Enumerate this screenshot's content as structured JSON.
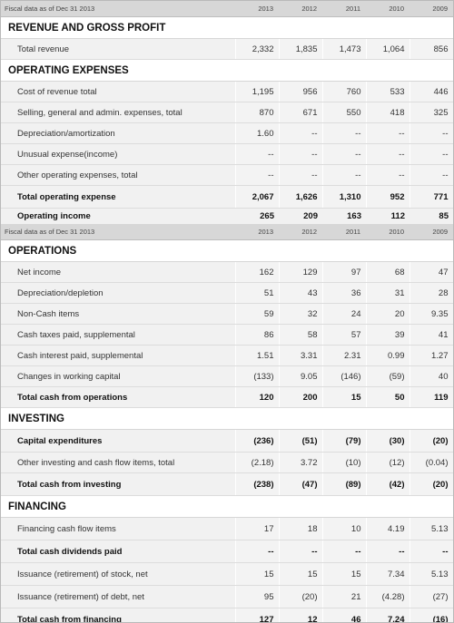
{
  "header": {
    "fiscal_label": "Fiscal data as of Dec 31 2013",
    "years": [
      "2013",
      "2012",
      "2011",
      "2010",
      "2009"
    ]
  },
  "income": {
    "revenue_section": "REVENUE AND GROSS PROFIT",
    "total_revenue": {
      "label": "Total revenue",
      "values": [
        "2,332",
        "1,835",
        "1,473",
        "1,064",
        "856"
      ]
    },
    "opex_section": "OPERATING EXPENSES",
    "rows": [
      {
        "label": "Cost of revenue total",
        "values": [
          "1,195",
          "956",
          "760",
          "533",
          "446"
        ]
      },
      {
        "label": "Selling, general and admin. expenses, total",
        "values": [
          "870",
          "671",
          "550",
          "418",
          "325"
        ]
      },
      {
        "label": "Depreciation/amortization",
        "values": [
          "1.60",
          "--",
          "--",
          "--",
          "--"
        ]
      },
      {
        "label": "Unusual expense(income)",
        "values": [
          "--",
          "--",
          "--",
          "--",
          "--"
        ]
      },
      {
        "label": "Other operating expenses, total",
        "values": [
          "--",
          "--",
          "--",
          "--",
          "--"
        ]
      }
    ],
    "total_opex": {
      "label": "Total operating expense",
      "values": [
        "2,067",
        "1,626",
        "1,310",
        "952",
        "771"
      ]
    },
    "operating_income": {
      "label": "Operating income",
      "values": [
        "265",
        "209",
        "163",
        "112",
        "85"
      ]
    }
  },
  "cashflow": {
    "operations_section": "OPERATIONS",
    "operations_rows": [
      {
        "label": "Net income",
        "values": [
          "162",
          "129",
          "97",
          "68",
          "47"
        ]
      },
      {
        "label": "Depreciation/depletion",
        "values": [
          "51",
          "43",
          "36",
          "31",
          "28"
        ]
      },
      {
        "label": "Non-Cash items",
        "values": [
          "59",
          "32",
          "24",
          "20",
          "9.35"
        ]
      },
      {
        "label": "Cash taxes paid, supplemental",
        "values": [
          "86",
          "58",
          "57",
          "39",
          "41"
        ]
      },
      {
        "label": "Cash interest paid, supplemental",
        "values": [
          "1.51",
          "3.31",
          "2.31",
          "0.99",
          "1.27"
        ]
      },
      {
        "label": "Changes in working capital",
        "values": [
          "(133)",
          "9.05",
          "(146)",
          "(59)",
          "40"
        ]
      }
    ],
    "total_operations": {
      "label": "Total cash from operations",
      "values": [
        "120",
        "200",
        "15",
        "50",
        "119"
      ]
    },
    "investing_section": "INVESTING",
    "capex": {
      "label": "Capital expenditures",
      "values": [
        "(236)",
        "(51)",
        "(79)",
        "(30)",
        "(20)"
      ]
    },
    "other_investing": {
      "label": "Other investing and cash flow items, total",
      "values": [
        "(2.18)",
        "3.72",
        "(10)",
        "(12)",
        "(0.04)"
      ]
    },
    "total_investing": {
      "label": "Total cash from investing",
      "values": [
        "(238)",
        "(47)",
        "(89)",
        "(42)",
        "(20)"
      ]
    },
    "financing_section": "FINANCING",
    "financing_items": {
      "label": "Financing cash flow items",
      "values": [
        "17",
        "18",
        "10",
        "4.19",
        "5.13"
      ]
    },
    "dividends": {
      "label": "Total cash dividends paid",
      "values": [
        "--",
        "--",
        "--",
        "--",
        "--"
      ]
    },
    "stock": {
      "label": "Issuance (retirement) of stock, net",
      "values": [
        "15",
        "15",
        "15",
        "7.34",
        "5.13"
      ]
    },
    "debt": {
      "label": "Issuance (retirement) of debt, net",
      "values": [
        "95",
        "(20)",
        "21",
        "(4.28)",
        "(27)"
      ]
    },
    "total_financing": {
      "label": "Total cash from financing",
      "values": [
        "127",
        "12",
        "46",
        "7.24",
        "(16)"
      ]
    }
  }
}
